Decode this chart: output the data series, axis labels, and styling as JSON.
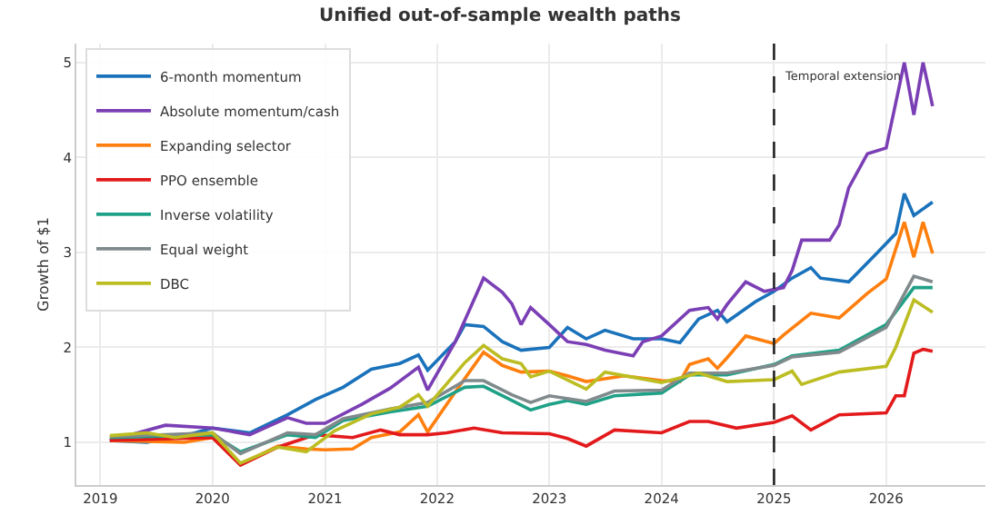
{
  "chart_data": {
    "type": "line",
    "title": "Unified out-of-sample wealth paths",
    "ylabel": "Growth of $1",
    "xlim": [
      "2018-10-15",
      "2026-11-20"
    ],
    "ylim": [
      0.55,
      5.2
    ],
    "xticks": [
      {
        "value": "2019-01-01",
        "label": "2019"
      },
      {
        "value": "2020-01-01",
        "label": "2020"
      },
      {
        "value": "2021-01-01",
        "label": "2021"
      },
      {
        "value": "2022-01-01",
        "label": "2022"
      },
      {
        "value": "2023-01-01",
        "label": "2023"
      },
      {
        "value": "2024-01-01",
        "label": "2024"
      },
      {
        "value": "2025-01-01",
        "label": "2025"
      },
      {
        "value": "2026-01-01",
        "label": "2026"
      }
    ],
    "yticks": [
      1,
      2,
      3,
      4,
      5
    ],
    "grid": true,
    "legend": "top left",
    "marker": "none",
    "line_style": "solid",
    "ref_lines": [
      {
        "axis": "x",
        "value": "2025-01-01",
        "label": "Temporal extension",
        "color": "#222222",
        "line_style": "dashed"
      }
    ],
    "series": [
      {
        "name": "6-month momentum",
        "color": "#1a72bb",
        "x": [
          "2019-02",
          "2019-06",
          "2019-10",
          "2020-01",
          "2020-05",
          "2020-09",
          "2020-12",
          "2021-03",
          "2021-06",
          "2021-09",
          "2021-11",
          "2021-12",
          "2022-03",
          "2022-04",
          "2022-06",
          "2022-08",
          "2022-10",
          "2023-01",
          "2023-03",
          "2023-05",
          "2023-07",
          "2023-10",
          "2024-01",
          "2024-03",
          "2024-05",
          "2024-07",
          "2024-08",
          "2024-11",
          "2025-01",
          "2025-03",
          "2025-05",
          "2025-06",
          "2025-09",
          "2025-12",
          "2026-02",
          "2026-03",
          "2026-04",
          "2026-06"
        ],
        "values": [
          1.02,
          1.0,
          1.07,
          1.15,
          1.1,
          1.29,
          1.45,
          1.58,
          1.77,
          1.83,
          1.92,
          1.76,
          2.06,
          2.24,
          2.22,
          2.06,
          1.97,
          2.0,
          2.21,
          2.09,
          2.18,
          2.09,
          2.09,
          2.05,
          2.3,
          2.39,
          2.27,
          2.48,
          2.59,
          2.73,
          2.84,
          2.73,
          2.69,
          2.99,
          3.2,
          3.62,
          3.39,
          3.53
        ]
      },
      {
        "name": "Absolute momentum/cash",
        "color": "#7b3fb5",
        "x": [
          "2019-02",
          "2019-08",
          "2020-01",
          "2020-05",
          "2020-09",
          "2020-11",
          "2021-01",
          "2021-05",
          "2021-08",
          "2021-11",
          "2021-12",
          "2022-03",
          "2022-06",
          "2022-08",
          "2022-09",
          "2022-10",
          "2022-11",
          "2023-01",
          "2023-03",
          "2023-05",
          "2023-07",
          "2023-10",
          "2023-11",
          "2024-01",
          "2024-04",
          "2024-06",
          "2024-07",
          "2024-08",
          "2024-10",
          "2024-12",
          "2025-02",
          "2025-03",
          "2025-04",
          "2025-07",
          "2025-08",
          "2025-09",
          "2025-11",
          "2026-01",
          "2026-03",
          "2026-04",
          "2026-05",
          "2026-06"
        ],
        "values": [
          1.02,
          1.18,
          1.15,
          1.08,
          1.26,
          1.2,
          1.2,
          1.4,
          1.57,
          1.79,
          1.55,
          2.06,
          2.73,
          2.58,
          2.46,
          2.24,
          2.42,
          2.24,
          2.06,
          2.03,
          1.97,
          1.91,
          2.06,
          2.12,
          2.39,
          2.42,
          2.3,
          2.45,
          2.69,
          2.59,
          2.63,
          2.81,
          3.13,
          3.13,
          3.29,
          3.68,
          4.04,
          4.1,
          5.0,
          4.45,
          5.0,
          4.54
        ]
      },
      {
        "name": "Expanding selector",
        "color": "#ff7f0e",
        "x": [
          "2019-02",
          "2019-10",
          "2020-01",
          "2020-04",
          "2020-08",
          "2020-11",
          "2021-01",
          "2021-04",
          "2021-06",
          "2021-09",
          "2021-11",
          "2021-12",
          "2022-03",
          "2022-06",
          "2022-08",
          "2022-10",
          "2023-01",
          "2023-03",
          "2023-05",
          "2023-09",
          "2024-01",
          "2024-03",
          "2024-04",
          "2024-06",
          "2024-07",
          "2024-08",
          "2024-10",
          "2025-01",
          "2025-02",
          "2025-05",
          "2025-08",
          "2025-11",
          "2026-01",
          "2026-03",
          "2026-04",
          "2026-05",
          "2026-06"
        ],
        "values": [
          1.02,
          1.0,
          1.05,
          0.77,
          0.96,
          0.93,
          0.92,
          0.93,
          1.05,
          1.11,
          1.29,
          1.11,
          1.53,
          1.95,
          1.81,
          1.74,
          1.75,
          1.7,
          1.64,
          1.7,
          1.65,
          1.64,
          1.82,
          1.88,
          1.78,
          1.89,
          2.12,
          2.04,
          2.13,
          2.36,
          2.31,
          2.57,
          2.72,
          3.32,
          2.95,
          3.32,
          2.99
        ]
      },
      {
        "name": "PPO ensemble",
        "color": "#e31a1c",
        "x": [
          "2019-02",
          "2020-01",
          "2020-04",
          "2020-08",
          "2020-12",
          "2021-04",
          "2021-07",
          "2021-09",
          "2021-12",
          "2022-02",
          "2022-05",
          "2022-08",
          "2023-01",
          "2023-03",
          "2023-05",
          "2023-08",
          "2024-01",
          "2024-04",
          "2024-06",
          "2024-09",
          "2025-01",
          "2025-03",
          "2025-05",
          "2025-08",
          "2026-01",
          "2026-02",
          "2026-03",
          "2026-04",
          "2026-05",
          "2026-06"
        ],
        "values": [
          1.02,
          1.05,
          0.76,
          0.95,
          1.08,
          1.05,
          1.13,
          1.08,
          1.08,
          1.1,
          1.15,
          1.1,
          1.09,
          1.04,
          0.96,
          1.13,
          1.1,
          1.22,
          1.22,
          1.15,
          1.21,
          1.28,
          1.13,
          1.29,
          1.31,
          1.49,
          1.49,
          1.94,
          1.98,
          1.96
        ]
      },
      {
        "name": "Inverse volatility",
        "color": "#1fa187",
        "x": [
          "2019-02",
          "2020-01",
          "2020-04",
          "2020-09",
          "2020-12",
          "2021-03",
          "2021-08",
          "2021-12",
          "2022-04",
          "2022-06",
          "2022-09",
          "2022-11",
          "2023-01",
          "2023-03",
          "2023-05",
          "2023-08",
          "2024-01",
          "2024-04",
          "2024-08",
          "2025-01",
          "2025-03",
          "2025-08",
          "2026-01",
          "2026-04",
          "2026-06"
        ],
        "values": [
          1.05,
          1.08,
          0.9,
          1.08,
          1.05,
          1.23,
          1.32,
          1.38,
          1.58,
          1.59,
          1.44,
          1.34,
          1.4,
          1.44,
          1.4,
          1.49,
          1.52,
          1.71,
          1.71,
          1.82,
          1.91,
          1.97,
          2.24,
          2.63,
          2.63
        ]
      },
      {
        "name": "Equal weight",
        "color": "#808a8c",
        "x": [
          "2019-02",
          "2020-01",
          "2020-04",
          "2020-09",
          "2020-12",
          "2021-03",
          "2021-08",
          "2021-12",
          "2022-04",
          "2022-06",
          "2022-09",
          "2022-11",
          "2023-01",
          "2023-05",
          "2023-08",
          "2024-01",
          "2024-04",
          "2024-08",
          "2025-01",
          "2025-03",
          "2025-08",
          "2026-01",
          "2026-04",
          "2026-06"
        ],
        "values": [
          1.06,
          1.1,
          0.88,
          1.1,
          1.08,
          1.25,
          1.35,
          1.42,
          1.65,
          1.65,
          1.5,
          1.42,
          1.49,
          1.43,
          1.54,
          1.55,
          1.73,
          1.73,
          1.81,
          1.9,
          1.95,
          2.21,
          2.75,
          2.69
        ]
      },
      {
        "name": "DBC",
        "color": "#bcbd22",
        "x": [
          "2019-02",
          "2019-06",
          "2019-09",
          "2020-01",
          "2020-04",
          "2020-08",
          "2020-11",
          "2021-02",
          "2021-06",
          "2021-09",
          "2021-11",
          "2021-12",
          "2022-04",
          "2022-06",
          "2022-08",
          "2022-10",
          "2022-11",
          "2023-01",
          "2023-05",
          "2023-07",
          "2024-01",
          "2024-05",
          "2024-08",
          "2025-01",
          "2025-03",
          "2025-04",
          "2025-08",
          "2026-01",
          "2026-02",
          "2026-04",
          "2026-06"
        ],
        "values": [
          1.07,
          1.1,
          1.05,
          1.1,
          0.78,
          0.95,
          0.9,
          1.12,
          1.3,
          1.37,
          1.5,
          1.38,
          1.84,
          2.02,
          1.88,
          1.83,
          1.69,
          1.75,
          1.56,
          1.74,
          1.63,
          1.73,
          1.64,
          1.66,
          1.75,
          1.61,
          1.74,
          1.8,
          2.0,
          2.5,
          2.37
        ]
      }
    ]
  }
}
